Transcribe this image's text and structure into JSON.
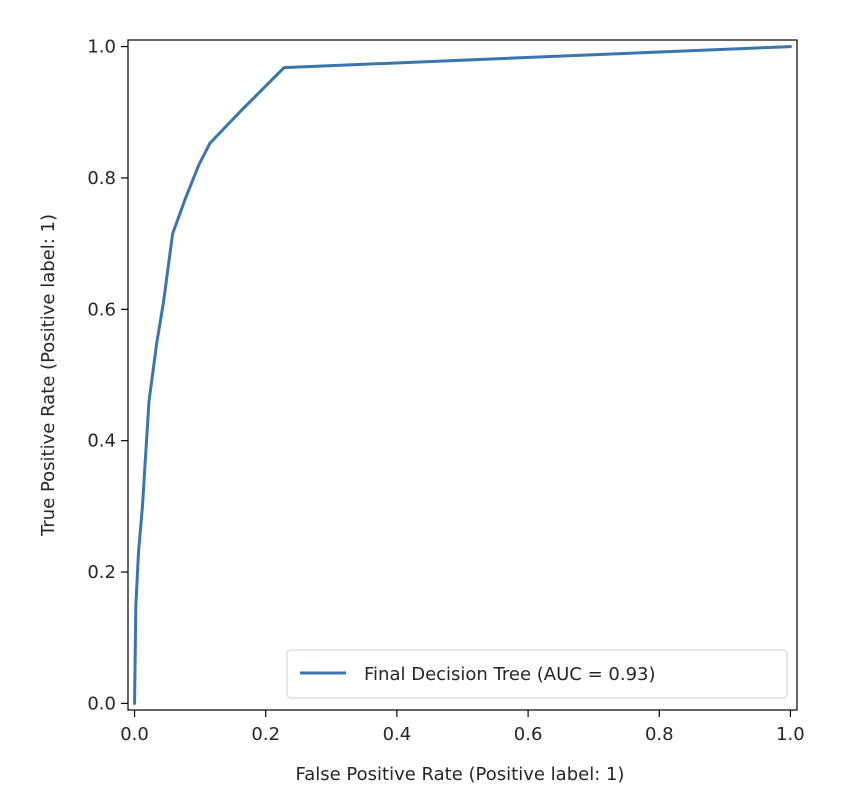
{
  "chart_data": {
    "type": "line",
    "title": "",
    "xlabel": "False Positive Rate (Positive label: 1)",
    "ylabel": "True Positive Rate (Positive label: 1)",
    "xlim": [
      -0.01,
      1.01
    ],
    "ylim": [
      -0.01,
      1.01
    ],
    "x_ticks": [
      "0.0",
      "0.2",
      "0.4",
      "0.6",
      "0.8",
      "1.0"
    ],
    "y_ticks": [
      "0.0",
      "0.2",
      "0.4",
      "0.6",
      "0.8",
      "1.0"
    ],
    "grid": false,
    "legend": "lower-right",
    "series": [
      {
        "name": "Final Decision Tree (AUC = 0.93)",
        "color": "#3b75af",
        "x": [
          0.0,
          0.002,
          0.006,
          0.012,
          0.022,
          0.034,
          0.044,
          0.058,
          0.078,
          0.098,
          0.115,
          0.165,
          0.228,
          1.0
        ],
        "y": [
          0.0,
          0.15,
          0.23,
          0.3,
          0.46,
          0.55,
          0.61,
          0.715,
          0.77,
          0.82,
          0.853,
          0.905,
          0.968,
          1.0
        ]
      }
    ]
  }
}
